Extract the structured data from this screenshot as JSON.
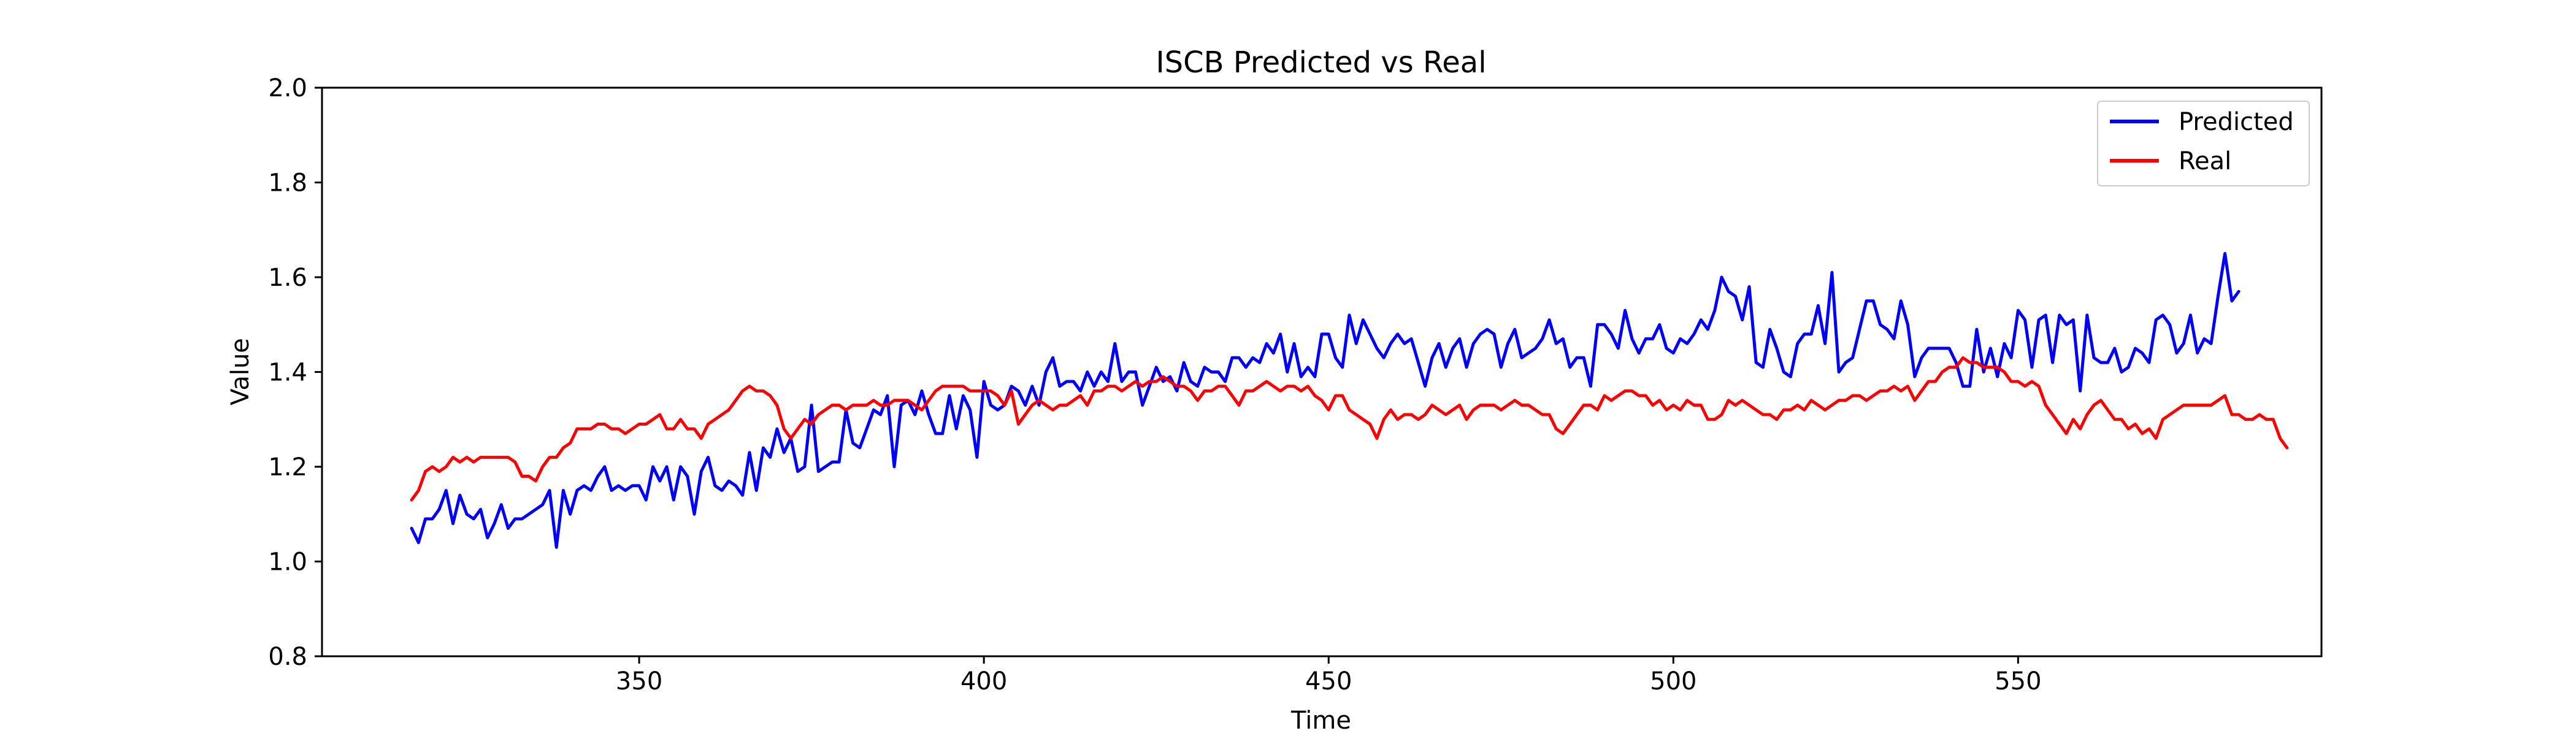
{
  "chart_data": {
    "type": "line",
    "title": "ISCB Predicted vs Real",
    "xlabel": "Time",
    "ylabel": "Value",
    "xlim": [
      304,
      594
    ],
    "ylim": [
      0.8,
      2.0
    ],
    "xticks": [
      350,
      400,
      450,
      500,
      550
    ],
    "yticks": [
      0.8,
      1.0,
      1.2,
      1.4,
      1.6,
      1.8,
      2.0
    ],
    "xtick_labels": [
      "350",
      "400",
      "450",
      "500",
      "550"
    ],
    "ytick_labels": [
      "0.8",
      "1.0",
      "1.2",
      "1.4",
      "1.6",
      "1.8",
      "2.0"
    ],
    "grid": false,
    "legend_position": "top-right",
    "x_start": 317,
    "series": [
      {
        "name": "Predicted",
        "color": "#0000ff",
        "values": [
          1.07,
          1.04,
          1.09,
          1.09,
          1.11,
          1.15,
          1.08,
          1.14,
          1.1,
          1.09,
          1.11,
          1.05,
          1.08,
          1.12,
          1.07,
          1.09,
          1.09,
          1.1,
          1.11,
          1.12,
          1.15,
          1.03,
          1.15,
          1.1,
          1.15,
          1.16,
          1.15,
          1.18,
          1.2,
          1.15,
          1.16,
          1.15,
          1.16,
          1.16,
          1.13,
          1.2,
          1.17,
          1.2,
          1.13,
          1.2,
          1.18,
          1.1,
          1.19,
          1.22,
          1.16,
          1.15,
          1.17,
          1.16,
          1.14,
          1.23,
          1.15,
          1.24,
          1.22,
          1.28,
          1.23,
          1.26,
          1.19,
          1.2,
          1.33,
          1.19,
          1.2,
          1.21,
          1.21,
          1.32,
          1.25,
          1.24,
          1.28,
          1.32,
          1.31,
          1.35,
          1.2,
          1.33,
          1.34,
          1.31,
          1.36,
          1.31,
          1.27,
          1.27,
          1.35,
          1.28,
          1.35,
          1.32,
          1.22,
          1.38,
          1.33,
          1.32,
          1.33,
          1.37,
          1.36,
          1.33,
          1.37,
          1.33,
          1.4,
          1.43,
          1.37,
          1.38,
          1.38,
          1.36,
          1.4,
          1.37,
          1.4,
          1.38,
          1.46,
          1.38,
          1.4,
          1.4,
          1.33,
          1.37,
          1.41,
          1.38,
          1.39,
          1.36,
          1.42,
          1.38,
          1.37,
          1.41,
          1.4,
          1.4,
          1.38,
          1.43,
          1.43,
          1.41,
          1.43,
          1.42,
          1.46,
          1.44,
          1.48,
          1.4,
          1.46,
          1.39,
          1.41,
          1.39,
          1.48,
          1.48,
          1.43,
          1.41,
          1.52,
          1.46,
          1.51,
          1.48,
          1.45,
          1.43,
          1.46,
          1.48,
          1.46,
          1.47,
          1.42,
          1.37,
          1.43,
          1.46,
          1.41,
          1.45,
          1.47,
          1.41,
          1.46,
          1.48,
          1.49,
          1.48,
          1.41,
          1.46,
          1.49,
          1.43,
          1.44,
          1.45,
          1.47,
          1.51,
          1.46,
          1.47,
          1.41,
          1.43,
          1.43,
          1.37,
          1.5,
          1.5,
          1.48,
          1.45,
          1.53,
          1.47,
          1.44,
          1.47,
          1.47,
          1.5,
          1.45,
          1.44,
          1.47,
          1.46,
          1.48,
          1.51,
          1.49,
          1.53,
          1.6,
          1.57,
          1.56,
          1.51,
          1.58,
          1.42,
          1.41,
          1.49,
          1.45,
          1.4,
          1.39,
          1.46,
          1.48,
          1.48,
          1.54,
          1.46,
          1.61,
          1.4,
          1.42,
          1.43,
          1.49,
          1.55,
          1.55,
          1.5,
          1.49,
          1.47,
          1.55,
          1.5,
          1.39,
          1.43,
          1.45,
          1.45,
          1.45,
          1.45,
          1.42,
          1.37,
          1.37,
          1.49,
          1.4,
          1.45,
          1.39,
          1.46,
          1.43,
          1.53,
          1.51,
          1.41,
          1.51,
          1.52,
          1.42,
          1.52,
          1.5,
          1.51,
          1.36,
          1.52,
          1.43,
          1.42,
          1.42,
          1.45,
          1.4,
          1.41,
          1.45,
          1.44,
          1.42,
          1.51,
          1.52,
          1.5,
          1.44,
          1.46,
          1.52,
          1.44,
          1.47,
          1.46,
          1.56,
          1.65,
          1.55,
          1.57
        ]
      },
      {
        "name": "Real",
        "color": "#ff0000",
        "values": [
          1.13,
          1.15,
          1.19,
          1.2,
          1.19,
          1.2,
          1.22,
          1.21,
          1.22,
          1.21,
          1.22,
          1.22,
          1.22,
          1.22,
          1.22,
          1.21,
          1.18,
          1.18,
          1.17,
          1.2,
          1.22,
          1.22,
          1.24,
          1.25,
          1.28,
          1.28,
          1.28,
          1.29,
          1.29,
          1.28,
          1.28,
          1.27,
          1.28,
          1.29,
          1.29,
          1.3,
          1.31,
          1.28,
          1.28,
          1.3,
          1.28,
          1.28,
          1.26,
          1.29,
          1.3,
          1.31,
          1.32,
          1.34,
          1.36,
          1.37,
          1.36,
          1.36,
          1.35,
          1.33,
          1.28,
          1.26,
          1.28,
          1.3,
          1.29,
          1.31,
          1.32,
          1.33,
          1.33,
          1.32,
          1.33,
          1.33,
          1.33,
          1.34,
          1.33,
          1.33,
          1.34,
          1.34,
          1.34,
          1.33,
          1.32,
          1.34,
          1.36,
          1.37,
          1.37,
          1.37,
          1.37,
          1.36,
          1.36,
          1.36,
          1.36,
          1.35,
          1.33,
          1.36,
          1.29,
          1.31,
          1.33,
          1.34,
          1.33,
          1.32,
          1.33,
          1.33,
          1.34,
          1.35,
          1.33,
          1.36,
          1.36,
          1.37,
          1.37,
          1.36,
          1.37,
          1.38,
          1.37,
          1.38,
          1.38,
          1.39,
          1.38,
          1.37,
          1.37,
          1.36,
          1.34,
          1.36,
          1.36,
          1.37,
          1.37,
          1.35,
          1.33,
          1.36,
          1.36,
          1.37,
          1.38,
          1.37,
          1.36,
          1.37,
          1.37,
          1.36,
          1.37,
          1.35,
          1.34,
          1.32,
          1.35,
          1.35,
          1.32,
          1.31,
          1.3,
          1.29,
          1.26,
          1.3,
          1.32,
          1.3,
          1.31,
          1.31,
          1.3,
          1.31,
          1.33,
          1.32,
          1.31,
          1.32,
          1.33,
          1.3,
          1.32,
          1.33,
          1.33,
          1.33,
          1.32,
          1.33,
          1.34,
          1.33,
          1.33,
          1.32,
          1.31,
          1.31,
          1.28,
          1.27,
          1.29,
          1.31,
          1.33,
          1.33,
          1.32,
          1.35,
          1.34,
          1.35,
          1.36,
          1.36,
          1.35,
          1.35,
          1.33,
          1.34,
          1.32,
          1.33,
          1.32,
          1.34,
          1.33,
          1.33,
          1.3,
          1.3,
          1.31,
          1.34,
          1.33,
          1.34,
          1.33,
          1.32,
          1.31,
          1.31,
          1.3,
          1.32,
          1.32,
          1.33,
          1.32,
          1.34,
          1.33,
          1.32,
          1.33,
          1.34,
          1.34,
          1.35,
          1.35,
          1.34,
          1.35,
          1.36,
          1.36,
          1.37,
          1.36,
          1.37,
          1.34,
          1.36,
          1.38,
          1.38,
          1.4,
          1.41,
          1.41,
          1.43,
          1.42,
          1.42,
          1.41,
          1.41,
          1.41,
          1.4,
          1.38,
          1.38,
          1.37,
          1.38,
          1.37,
          1.33,
          1.31,
          1.29,
          1.27,
          1.3,
          1.28,
          1.31,
          1.33,
          1.34,
          1.32,
          1.3,
          1.3,
          1.28,
          1.29,
          1.27,
          1.28,
          1.26,
          1.3,
          1.31,
          1.32,
          1.33,
          1.33,
          1.33,
          1.33,
          1.33,
          1.34,
          1.35,
          1.31,
          1.31,
          1.3,
          1.3,
          1.31,
          1.3,
          1.3,
          1.26,
          1.24
        ]
      }
    ]
  }
}
